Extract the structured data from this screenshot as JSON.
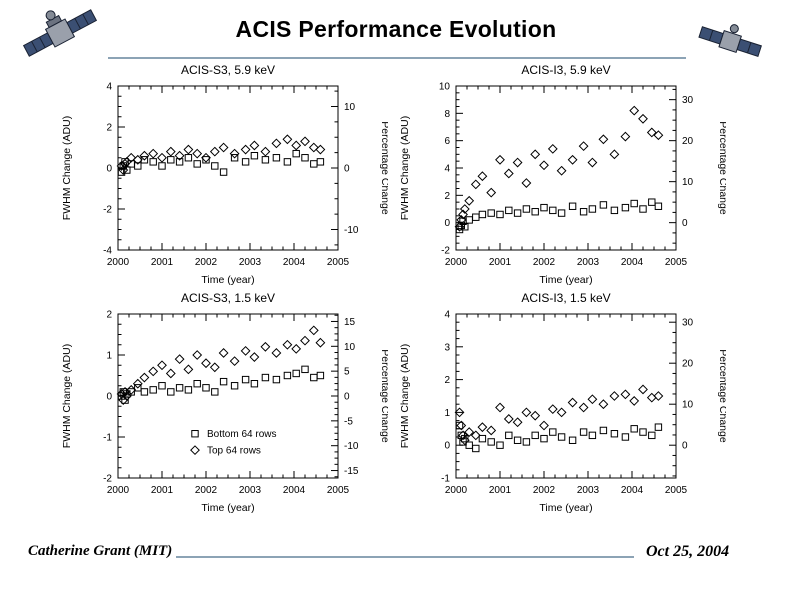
{
  "slide": {
    "title": "ACIS Performance Evolution",
    "footer_left": "Catherine Grant (MIT)",
    "footer_right": "Oct 25, 2004"
  },
  "icons": {
    "top_left": "satellite-icon",
    "top_right": "satellite-icon"
  },
  "colors": {
    "rule": "#8ca3b5",
    "plot": "#000000",
    "background": "#ffffff"
  },
  "chart_data": [
    {
      "type": "scatter",
      "title": "ACIS-S3, 5.9 keV",
      "xlabel": "Time (year)",
      "ylabel": "FWHM Change (ADU)",
      "y2label": "Percentage Change",
      "xlim": [
        2000,
        2005
      ],
      "xticks": [
        2000,
        2001,
        2002,
        2003,
        2004,
        2005
      ],
      "ylim": [
        -4,
        4
      ],
      "yticks": [
        -4,
        -2,
        0,
        2,
        4
      ],
      "y2lim": [
        -13.33,
        13.33
      ],
      "y2ticks": [
        -10,
        0,
        10
      ],
      "grid": false,
      "series": [
        {
          "name": "Bottom 64 rows",
          "marker": "square",
          "x": [
            2000.08,
            2000.12,
            2000.16,
            2000.2,
            2000.3,
            2000.45,
            2000.6,
            2000.8,
            2001.0,
            2001.2,
            2001.4,
            2001.6,
            2001.8,
            2002.0,
            2002.2,
            2002.4,
            2002.65,
            2002.9,
            2003.1,
            2003.35,
            2003.6,
            2003.85,
            2004.05,
            2004.25,
            2004.45,
            2004.6
          ],
          "y": [
            -0.2,
            0.1,
            0.3,
            -0.1,
            0.2,
            0.1,
            0.4,
            0.3,
            0.1,
            0.4,
            0.3,
            0.5,
            0.2,
            0.4,
            0.1,
            -0.2,
            0.5,
            0.3,
            0.6,
            0.4,
            0.5,
            0.3,
            0.7,
            0.5,
            0.2,
            0.3
          ]
        },
        {
          "name": "Top 64 rows",
          "marker": "diamond",
          "x": [
            2000.08,
            2000.12,
            2000.16,
            2000.2,
            2000.3,
            2000.45,
            2000.6,
            2000.8,
            2001.0,
            2001.2,
            2001.4,
            2001.6,
            2001.8,
            2002.0,
            2002.2,
            2002.4,
            2002.65,
            2002.9,
            2003.1,
            2003.35,
            2003.6,
            2003.85,
            2004.05,
            2004.25,
            2004.45,
            2004.6
          ],
          "y": [
            0.1,
            -0.1,
            0.2,
            0.3,
            0.5,
            0.4,
            0.6,
            0.7,
            0.5,
            0.8,
            0.6,
            0.9,
            0.7,
            0.5,
            0.8,
            1.0,
            0.7,
            0.9,
            1.1,
            0.8,
            1.2,
            1.4,
            1.1,
            1.3,
            1.0,
            0.9
          ]
        }
      ]
    },
    {
      "type": "scatter",
      "title": "ACIS-I3, 5.9 keV",
      "xlabel": "Time (year)",
      "ylabel": "FWHM Change (ADU)",
      "y2label": "Percentage Change",
      "xlim": [
        2000,
        2005
      ],
      "xticks": [
        2000,
        2001,
        2002,
        2003,
        2004,
        2005
      ],
      "ylim": [
        -2,
        10
      ],
      "yticks": [
        -2,
        0,
        2,
        4,
        6,
        8,
        10
      ],
      "y2lim": [
        -6.67,
        33.33
      ],
      "y2ticks": [
        0,
        10,
        20,
        30
      ],
      "grid": false,
      "series": [
        {
          "name": "Bottom 64 rows",
          "marker": "square",
          "x": [
            2000.08,
            2000.12,
            2000.16,
            2000.2,
            2000.3,
            2000.45,
            2000.6,
            2000.8,
            2001.0,
            2001.2,
            2001.4,
            2001.6,
            2001.8,
            2002.0,
            2002.2,
            2002.4,
            2002.65,
            2002.9,
            2003.1,
            2003.35,
            2003.6,
            2003.85,
            2004.05,
            2004.25,
            2004.45,
            2004.6
          ],
          "y": [
            -0.5,
            -0.2,
            0.1,
            -0.3,
            0.2,
            0.4,
            0.6,
            0.7,
            0.6,
            0.9,
            0.7,
            1.0,
            0.8,
            1.1,
            0.9,
            0.7,
            1.2,
            0.8,
            1.0,
            1.3,
            0.9,
            1.1,
            1.4,
            1.0,
            1.5,
            1.2
          ]
        },
        {
          "name": "Top 64 rows",
          "marker": "diamond",
          "x": [
            2000.08,
            2000.12,
            2000.16,
            2000.2,
            2000.3,
            2000.45,
            2000.6,
            2000.8,
            2001.0,
            2001.2,
            2001.4,
            2001.6,
            2001.8,
            2002.0,
            2002.2,
            2002.4,
            2002.65,
            2002.9,
            2003.1,
            2003.35,
            2003.6,
            2003.85,
            2004.05,
            2004.25,
            2004.45,
            2004.6
          ],
          "y": [
            -0.3,
            0.2,
            0.6,
            1.0,
            1.6,
            2.8,
            3.4,
            2.2,
            4.6,
            3.6,
            4.4,
            2.9,
            5.0,
            4.2,
            5.4,
            3.8,
            4.6,
            5.6,
            4.4,
            6.1,
            5.0,
            6.3,
            8.2,
            7.6,
            6.6,
            6.4
          ]
        }
      ]
    },
    {
      "type": "scatter",
      "title": "ACIS-S3, 1.5 keV",
      "xlabel": "Time (year)",
      "ylabel": "FWHM Change (ADU)",
      "y2label": "Percentage Change",
      "xlim": [
        2000,
        2005
      ],
      "xticks": [
        2000,
        2001,
        2002,
        2003,
        2004,
        2005
      ],
      "ylim": [
        -2,
        2
      ],
      "yticks": [
        -2,
        -1,
        0,
        1,
        2
      ],
      "y2lim": [
        -16.5,
        16.5
      ],
      "y2ticks": [
        -15,
        -10,
        -5,
        0,
        5,
        10,
        15
      ],
      "grid": false,
      "legend": {
        "x": 2001.75,
        "rows_y": [
          -0.92,
          -1.32
        ]
      },
      "series": [
        {
          "name": "Bottom 64 rows",
          "marker": "square",
          "x": [
            2000.08,
            2000.12,
            2000.16,
            2000.2,
            2000.3,
            2000.45,
            2000.6,
            2000.8,
            2001.0,
            2001.2,
            2001.4,
            2001.6,
            2001.8,
            2002.0,
            2002.2,
            2002.4,
            2002.65,
            2002.9,
            2003.1,
            2003.35,
            2003.6,
            2003.85,
            2004.05,
            2004.25,
            2004.45,
            2004.6
          ],
          "y": [
            0.0,
            0.1,
            -0.1,
            0.05,
            0.1,
            0.2,
            0.1,
            0.15,
            0.25,
            0.1,
            0.2,
            0.15,
            0.3,
            0.2,
            0.1,
            0.35,
            0.25,
            0.4,
            0.3,
            0.45,
            0.4,
            0.5,
            0.55,
            0.65,
            0.45,
            0.5
          ]
        },
        {
          "name": "Top 64 rows",
          "marker": "diamond",
          "x": [
            2000.08,
            2000.12,
            2000.16,
            2000.2,
            2000.3,
            2000.45,
            2000.6,
            2000.8,
            2001.0,
            2001.2,
            2001.4,
            2001.6,
            2001.8,
            2002.0,
            2002.2,
            2002.4,
            2002.65,
            2002.9,
            2003.1,
            2003.35,
            2003.6,
            2003.85,
            2004.05,
            2004.25,
            2004.45,
            2004.6
          ],
          "y": [
            0.05,
            -0.1,
            0.1,
            0.0,
            0.15,
            0.3,
            0.45,
            0.6,
            0.75,
            0.55,
            0.9,
            0.65,
            1.0,
            0.8,
            0.7,
            1.05,
            0.85,
            1.1,
            0.95,
            1.2,
            1.05,
            1.25,
            1.15,
            1.35,
            1.6,
            1.3
          ]
        }
      ]
    },
    {
      "type": "scatter",
      "title": "ACIS-I3, 1.5 keV",
      "xlabel": "Time (year)",
      "ylabel": "FWHM Change (ADU)",
      "y2label": "Percentage Change",
      "xlim": [
        2000,
        2005
      ],
      "xticks": [
        2000,
        2001,
        2002,
        2003,
        2004,
        2005
      ],
      "ylim": [
        -1,
        4
      ],
      "yticks": [
        -1,
        0,
        1,
        2,
        3,
        4
      ],
      "y2lim": [
        -8,
        32
      ],
      "y2ticks": [
        0,
        10,
        20,
        30
      ],
      "grid": false,
      "series": [
        {
          "name": "Bottom 64 rows",
          "marker": "square",
          "x": [
            2000.08,
            2000.12,
            2000.16,
            2000.2,
            2000.3,
            2000.45,
            2000.6,
            2000.8,
            2001.0,
            2001.2,
            2001.4,
            2001.6,
            2001.8,
            2002.0,
            2002.2,
            2002.4,
            2002.65,
            2002.9,
            2003.1,
            2003.35,
            2003.6,
            2003.85,
            2004.05,
            2004.25,
            2004.45,
            2004.6
          ],
          "y": [
            0.6,
            0.3,
            0.1,
            0.2,
            0.0,
            -0.1,
            0.2,
            0.1,
            0.0,
            0.3,
            0.15,
            0.1,
            0.3,
            0.2,
            0.4,
            0.25,
            0.15,
            0.4,
            0.3,
            0.45,
            0.35,
            0.25,
            0.5,
            0.4,
            0.3,
            0.55
          ]
        },
        {
          "name": "Top 64 rows",
          "marker": "diamond",
          "x": [
            2000.08,
            2000.12,
            2000.16,
            2000.2,
            2000.3,
            2000.45,
            2000.6,
            2000.8,
            2001.0,
            2001.2,
            2001.4,
            2001.6,
            2001.8,
            2002.0,
            2002.2,
            2002.4,
            2002.65,
            2002.9,
            2003.1,
            2003.35,
            2003.6,
            2003.85,
            2004.05,
            2004.25,
            2004.45,
            2004.6
          ],
          "y": [
            1.0,
            0.6,
            0.3,
            0.15,
            0.4,
            0.3,
            0.55,
            0.45,
            1.15,
            0.8,
            0.7,
            1.0,
            0.9,
            0.6,
            1.1,
            1.0,
            1.3,
            1.15,
            1.4,
            1.25,
            1.5,
            1.55,
            1.35,
            1.7,
            1.45,
            1.5
          ]
        }
      ]
    }
  ]
}
